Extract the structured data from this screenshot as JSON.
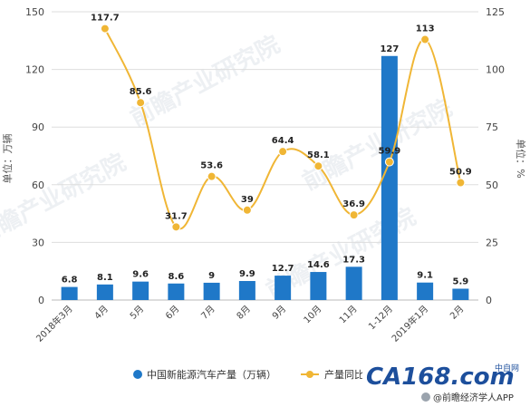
{
  "chart_data": {
    "type": "bar+line",
    "categories": [
      "2018年3月",
      "4月",
      "5月",
      "6月",
      "7月",
      "8月",
      "9月",
      "10月",
      "11月",
      "1-12月",
      "2019年1月",
      "2月"
    ],
    "series": [
      {
        "name": "中国新能源汽车产量（万辆）",
        "type": "bar",
        "axis": "left",
        "color": "#1f78c8",
        "values": [
          6.8,
          8.1,
          9.6,
          8.6,
          9,
          9.9,
          12.7,
          14.6,
          17.3,
          127,
          9.1,
          5.9
        ],
        "labels": [
          "6.8",
          "8.1",
          "9.6",
          "8.6",
          "9",
          "9.9",
          "12.7",
          "14.6",
          "17.3",
          "127",
          "9.1",
          "5.9"
        ]
      },
      {
        "name": "产量同比（%）",
        "type": "line",
        "axis": "right",
        "color": "#f0b635",
        "values": [
          null,
          117.7,
          85.6,
          31.7,
          53.6,
          39,
          64.4,
          58.1,
          36.9,
          59.9,
          113,
          50.9
        ],
        "labels": [
          "",
          "117.7",
          "85.6",
          "31.7",
          "53.6",
          "39",
          "64.4",
          "58.1",
          "36.9",
          "59.9",
          "113",
          "50.9"
        ]
      }
    ],
    "left_axis": {
      "label": "单位：万辆",
      "min": 0,
      "max": 150,
      "ticks": [
        "0",
        "30",
        "60",
        "90",
        "120",
        "150"
      ]
    },
    "right_axis": {
      "label": "单位：%",
      "min": 0,
      "max": 125,
      "ticks": [
        "0",
        "25",
        "50",
        "75",
        "100",
        "125"
      ]
    },
    "grid": true,
    "legend_position": "bottom"
  },
  "legend": {
    "bar_label": "中国新能源汽车产量（万辆）",
    "line_label": "产量同比（%）"
  },
  "watermark": {
    "text": "前瞻产业研究院"
  },
  "branding": {
    "logo_text": "CA168.com",
    "logo_sub": "中自网",
    "wechat_text": "@前瞻经济学人APP"
  }
}
